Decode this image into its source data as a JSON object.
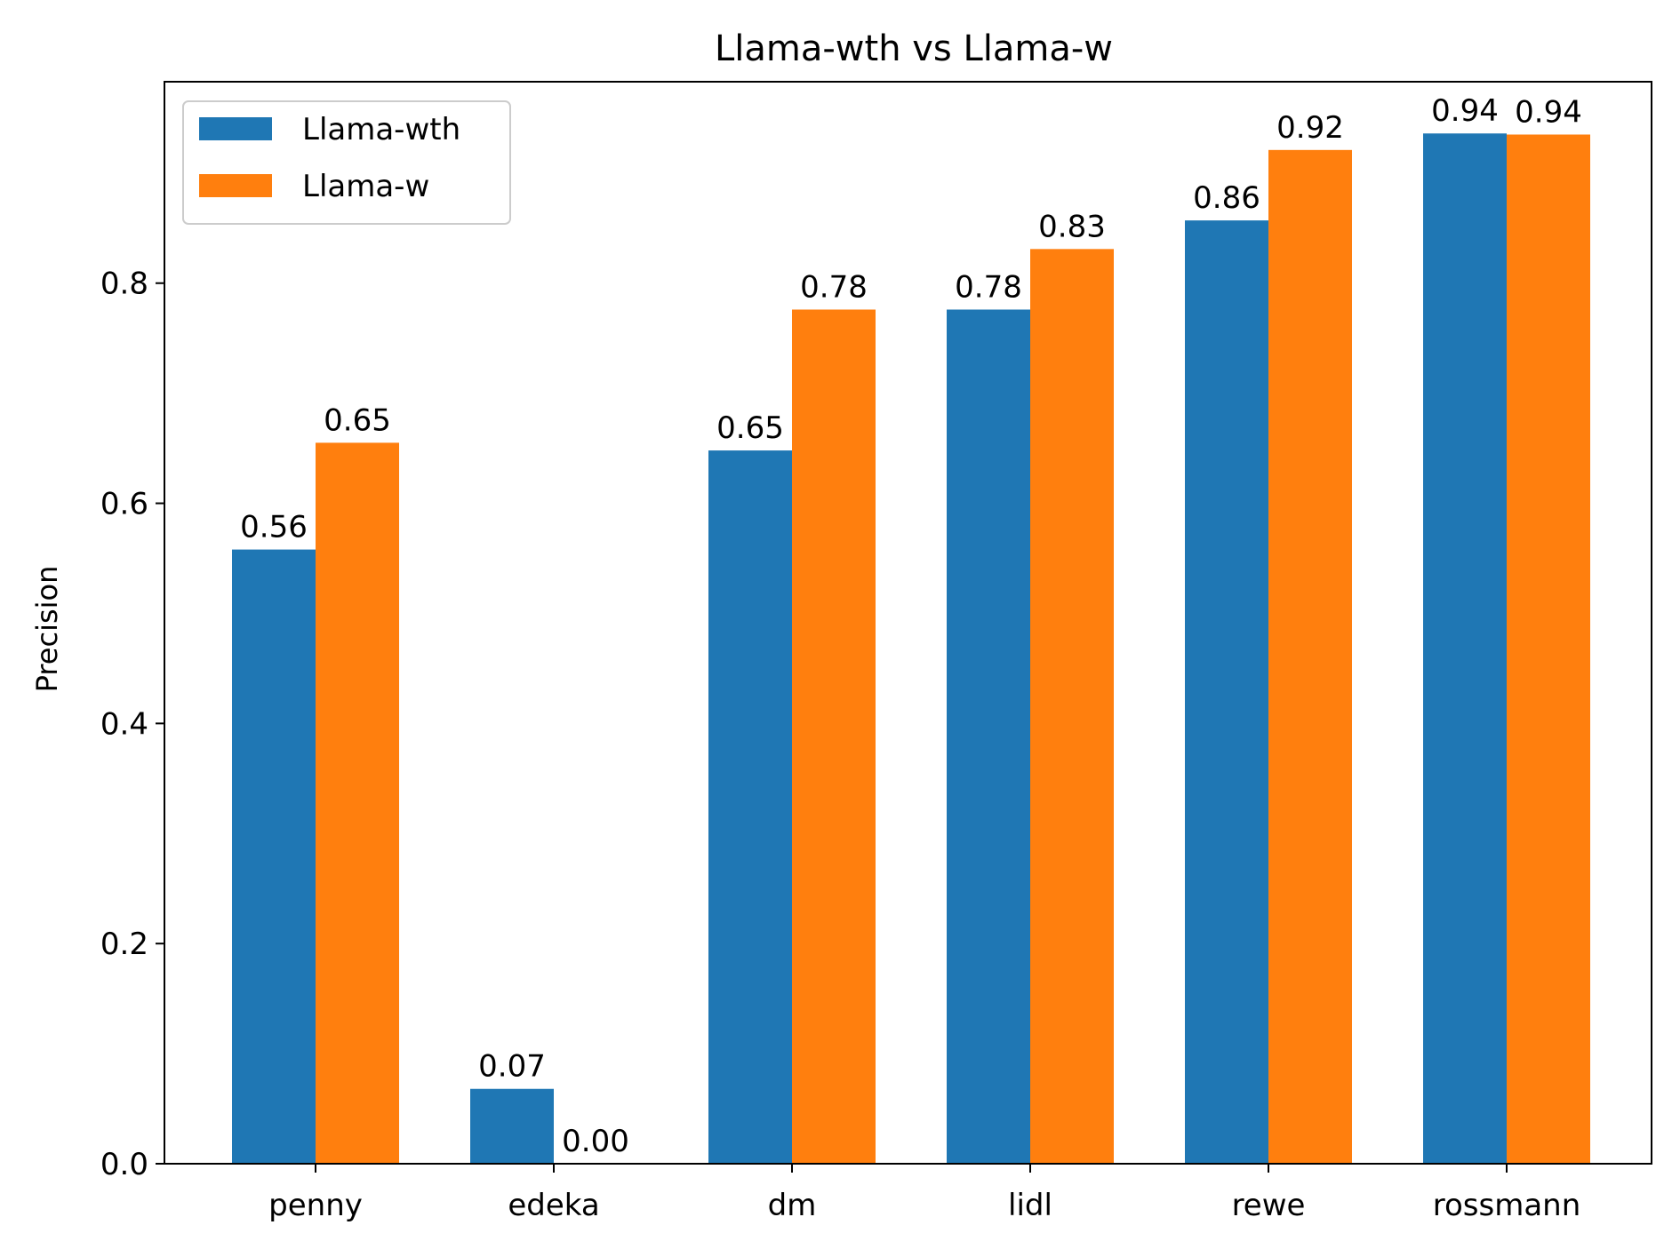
{
  "chart_data": {
    "type": "bar",
    "title": "Llama-wth vs Llama-w",
    "xlabel": "",
    "ylabel": "Precision",
    "categories": [
      "penny",
      "edeka",
      "dm",
      "lidl",
      "rewe",
      "rossmann"
    ],
    "series": [
      {
        "name": "Llama-wth",
        "color": "#1f77b4",
        "values": [
          0.558,
          0.068,
          0.648,
          0.776,
          0.857,
          0.936
        ],
        "labels": [
          "0.56",
          "0.07",
          "0.65",
          "0.78",
          "0.86",
          "0.94"
        ]
      },
      {
        "name": "Llama-w",
        "color": "#ff7f0e",
        "values": [
          0.655,
          0.0,
          0.776,
          0.831,
          0.921,
          0.935
        ],
        "labels": [
          "0.65",
          "0.00",
          "0.78",
          "0.83",
          "0.92",
          "0.94"
        ]
      }
    ],
    "ylim": [
      0,
      0.983
    ],
    "yticks": [
      0.0,
      0.2,
      0.4,
      0.6,
      0.8
    ],
    "ytick_labels": [
      "0.0",
      "0.2",
      "0.4",
      "0.6",
      "0.8"
    ],
    "grid": false,
    "legend_position": "upper-left"
  }
}
